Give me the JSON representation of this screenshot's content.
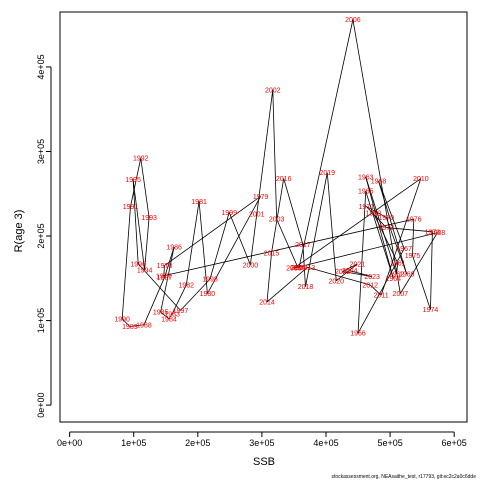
{
  "chart_data": {
    "type": "line",
    "xlabel": "SSB",
    "ylabel": "R(age 3)",
    "xlim": [
      -15000,
      620000
    ],
    "ylim": [
      -20000,
      465000
    ],
    "x_ticks": [
      0,
      100000,
      200000,
      300000,
      400000,
      500000,
      600000
    ],
    "x_tick_labels": [
      "0e+00",
      "1e+05",
      "2e+05",
      "3e+05",
      "4e+05",
      "5e+05",
      "6e+05"
    ],
    "y_ticks": [
      0,
      100000,
      200000,
      300000,
      400000
    ],
    "y_tick_labels": [
      "0e+00",
      "1e+05",
      "2e+05",
      "3e+05",
      "4e+05"
    ],
    "grid": false,
    "footer": "stockassessment.org, NEAsaithe_test, r17793, git:ec2c2a0c6dde",
    "series": [
      {
        "line_color": "#000000",
        "label_color": "#ff0000",
        "points": [
          {
            "year": "1960",
            "x": 474000,
            "y": 227000
          },
          {
            "year": "1961",
            "x": 512000,
            "y": 168000
          },
          {
            "year": "1962",
            "x": 510000,
            "y": 155000
          },
          {
            "year": "1963",
            "x": 462000,
            "y": 270000
          },
          {
            "year": "1964",
            "x": 505000,
            "y": 150000
          },
          {
            "year": "1965",
            "x": 462000,
            "y": 253000
          },
          {
            "year": "1966",
            "x": 450000,
            "y": 85000
          },
          {
            "year": "1967",
            "x": 522000,
            "y": 185000
          },
          {
            "year": "1968",
            "x": 482000,
            "y": 265000
          },
          {
            "year": "1969",
            "x": 526000,
            "y": 155000
          },
          {
            "year": "1970",
            "x": 494000,
            "y": 222000
          },
          {
            "year": "1971",
            "x": 463000,
            "y": 235000
          },
          {
            "year": "1972",
            "x": 494000,
            "y": 210000
          },
          {
            "year": "1973",
            "x": 566000,
            "y": 205000
          },
          {
            "year": "1974",
            "x": 563000,
            "y": 113000
          },
          {
            "year": "1975",
            "x": 535000,
            "y": 177000
          },
          {
            "year": "1976",
            "x": 537000,
            "y": 220000
          },
          {
            "year": "1977",
            "x": 147000,
            "y": 153000
          },
          {
            "year": "1978",
            "x": 148000,
            "y": 165000
          },
          {
            "year": "1979",
            "x": 298000,
            "y": 247000
          },
          {
            "year": "1980",
            "x": 215000,
            "y": 132000
          },
          {
            "year": "1981",
            "x": 202000,
            "y": 241000
          },
          {
            "year": "1982",
            "x": 182000,
            "y": 142000
          },
          {
            "year": "1983",
            "x": 160000,
            "y": 108000
          },
          {
            "year": "1984",
            "x": 155000,
            "y": 102000
          },
          {
            "year": "1985",
            "x": 142000,
            "y": 110000
          },
          {
            "year": "1986",
            "x": 163000,
            "y": 187000
          },
          {
            "year": "1987",
            "x": 148000,
            "y": 151000
          },
          {
            "year": "1988",
            "x": 116000,
            "y": 95000
          },
          {
            "year": "1989",
            "x": 94000,
            "y": 93000
          },
          {
            "year": "1990",
            "x": 82000,
            "y": 102000
          },
          {
            "year": "1991",
            "x": 95000,
            "y": 235000
          },
          {
            "year": "1992",
            "x": 111000,
            "y": 292000
          },
          {
            "year": "1993",
            "x": 124000,
            "y": 222000
          },
          {
            "year": "1994",
            "x": 117000,
            "y": 160000
          },
          {
            "year": "1995",
            "x": 99000,
            "y": 267000
          },
          {
            "year": "1996",
            "x": 107000,
            "y": 167000
          },
          {
            "year": "1997",
            "x": 173000,
            "y": 112000
          },
          {
            "year": "1998",
            "x": 219000,
            "y": 149000
          },
          {
            "year": "1999",
            "x": 249000,
            "y": 228000
          },
          {
            "year": "2000",
            "x": 282000,
            "y": 166000
          },
          {
            "year": "2001",
            "x": 292000,
            "y": 226000
          },
          {
            "year": "2002",
            "x": 317000,
            "y": 373000
          },
          {
            "year": "2003",
            "x": 323000,
            "y": 220000
          },
          {
            "year": "2004",
            "x": 356000,
            "y": 163000
          },
          {
            "year": "2005",
            "x": 358000,
            "y": 163000
          },
          {
            "year": "2006",
            "x": 442000,
            "y": 456000
          },
          {
            "year": "2007",
            "x": 516000,
            "y": 132000
          },
          {
            "year": "2008",
            "x": 574000,
            "y": 204000
          },
          {
            "year": "2009",
            "x": 350000,
            "y": 162000
          },
          {
            "year": "2010",
            "x": 548000,
            "y": 268000
          },
          {
            "year": "2011",
            "x": 486000,
            "y": 130000
          },
          {
            "year": "2012",
            "x": 469000,
            "y": 142000
          },
          {
            "year": "2013",
            "x": 371000,
            "y": 163000
          },
          {
            "year": "2014",
            "x": 308000,
            "y": 122000
          },
          {
            "year": "2015",
            "x": 315000,
            "y": 180000
          },
          {
            "year": "2016",
            "x": 334000,
            "y": 268000
          },
          {
            "year": "2017",
            "x": 364000,
            "y": 190000
          },
          {
            "year": "2018",
            "x": 368000,
            "y": 140000
          },
          {
            "year": "2019",
            "x": 402000,
            "y": 275000
          },
          {
            "year": "2020",
            "x": 416000,
            "y": 147000
          },
          {
            "year": "2021",
            "x": 449000,
            "y": 167000
          },
          {
            "year": "2022",
            "x": 426000,
            "y": 158000
          },
          {
            "year": "2023",
            "x": 472000,
            "y": 152000
          },
          {
            "year": "2024",
            "x": 437000,
            "y": 159000
          }
        ]
      }
    ]
  }
}
